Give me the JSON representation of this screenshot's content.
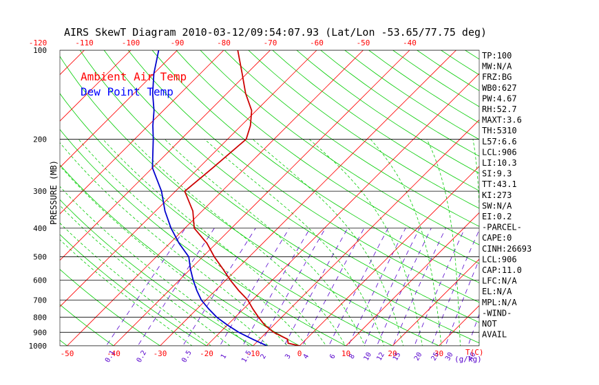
{
  "chart_data": {
    "type": "line",
    "title": "AIRS SkewT Diagram 2010-03-12/09:54:07.93 (Lat/Lon -53.65/77.75 deg)",
    "ylabel": "PRESSURE (MB)",
    "xlabel": "T(C)",
    "mixing_ratio_unit": "(g/kg)",
    "y_scale": "log",
    "ylim": [
      1000,
      100
    ],
    "pressure_ticks": [
      100,
      200,
      300,
      400,
      500,
      600,
      700,
      800,
      900,
      1000
    ],
    "bottom_temp_ticks": [
      -50,
      -40,
      -30,
      -20,
      -10,
      0,
      10,
      20,
      30
    ],
    "top_temp_ticks": [
      -120,
      -110,
      -100,
      -90,
      -80,
      -70,
      -60,
      -50,
      -40
    ],
    "mixing_ratio_labels": [
      "0.1",
      "0.2",
      "0.5",
      "1",
      "1.5",
      "2",
      "3",
      "4",
      "6",
      "8",
      "10",
      "12",
      "15",
      "20",
      "25",
      "30",
      "40"
    ],
    "legend": {
      "placement": "top-left",
      "entries": [
        {
          "label": "Ambient Air Temp",
          "color": "#ff0000"
        },
        {
          "label": "Dew Point Temp",
          "color": "#0000ff"
        }
      ]
    },
    "series": [
      {
        "name": "Ambient Air Temp",
        "color": "#cc0000",
        "points": [
          {
            "p": 1000,
            "t": 0
          },
          {
            "p": 980,
            "t": -3
          },
          {
            "p": 950,
            "t": -4
          },
          {
            "p": 900,
            "t": -8.5
          },
          {
            "p": 850,
            "t": -12
          },
          {
            "p": 800,
            "t": -15
          },
          {
            "p": 750,
            "t": -18
          },
          {
            "p": 700,
            "t": -21
          },
          {
            "p": 650,
            "t": -25
          },
          {
            "p": 600,
            "t": -29
          },
          {
            "p": 550,
            "t": -33
          },
          {
            "p": 500,
            "t": -37.5
          },
          {
            "p": 450,
            "t": -42
          },
          {
            "p": 400,
            "t": -48
          },
          {
            "p": 350,
            "t": -52
          },
          {
            "p": 300,
            "t": -58
          },
          {
            "p": 250,
            "t": -57
          },
          {
            "p": 200,
            "t": -56
          },
          {
            "p": 180,
            "t": -58
          },
          {
            "p": 160,
            "t": -61
          },
          {
            "p": 140,
            "t": -66
          },
          {
            "p": 120,
            "t": -71
          },
          {
            "p": 100,
            "t": -77
          }
        ]
      },
      {
        "name": "Dew Point Temp",
        "color": "#0000cc",
        "points": [
          {
            "p": 1000,
            "t": -7
          },
          {
            "p": 950,
            "t": -11.5
          },
          {
            "p": 900,
            "t": -16
          },
          {
            "p": 850,
            "t": -20
          },
          {
            "p": 800,
            "t": -24
          },
          {
            "p": 750,
            "t": -27.5
          },
          {
            "p": 700,
            "t": -31
          },
          {
            "p": 650,
            "t": -34
          },
          {
            "p": 600,
            "t": -37
          },
          {
            "p": 550,
            "t": -40
          },
          {
            "p": 500,
            "t": -43
          },
          {
            "p": 450,
            "t": -48
          },
          {
            "p": 400,
            "t": -53
          },
          {
            "p": 350,
            "t": -58
          },
          {
            "p": 300,
            "t": -63
          },
          {
            "p": 250,
            "t": -70
          },
          {
            "p": 200,
            "t": -76
          },
          {
            "p": 180,
            "t": -79
          },
          {
            "p": 160,
            "t": -82
          },
          {
            "p": 140,
            "t": -86
          },
          {
            "p": 120,
            "t": -90
          },
          {
            "p": 100,
            "t": -94
          }
        ]
      }
    ],
    "indices": [
      "TP:100",
      "MW:N/A",
      "FRZ:BG",
      "WB0:627",
      "PW:4.67",
      "RH:52.7",
      "MAXT:3.6",
      "TH:5310",
      "L57:6.6",
      "LCL:906",
      "LI:10.3",
      "SI:9.3",
      "TT:43.1",
      "KI:273",
      "SW:N/A",
      "EI:0.2",
      "-PARCEL-",
      "CAPE:0",
      "CINH:26693",
      "LCL:906",
      "CAP:11.0",
      "LFC:N/A",
      "EL:N/A",
      "MPL:N/A",
      "-WIND-",
      "NOT",
      "AVAIL"
    ]
  },
  "colors": {
    "isotherm": "#ff0000",
    "dry_adiabat": "#00cc00",
    "moist_adiabat": "#00cc00",
    "mixing_ratio": "#5500cc",
    "isobar": "#000000",
    "temp_tick_label": "#ff0000",
    "mixing_label": "#5500cc"
  }
}
